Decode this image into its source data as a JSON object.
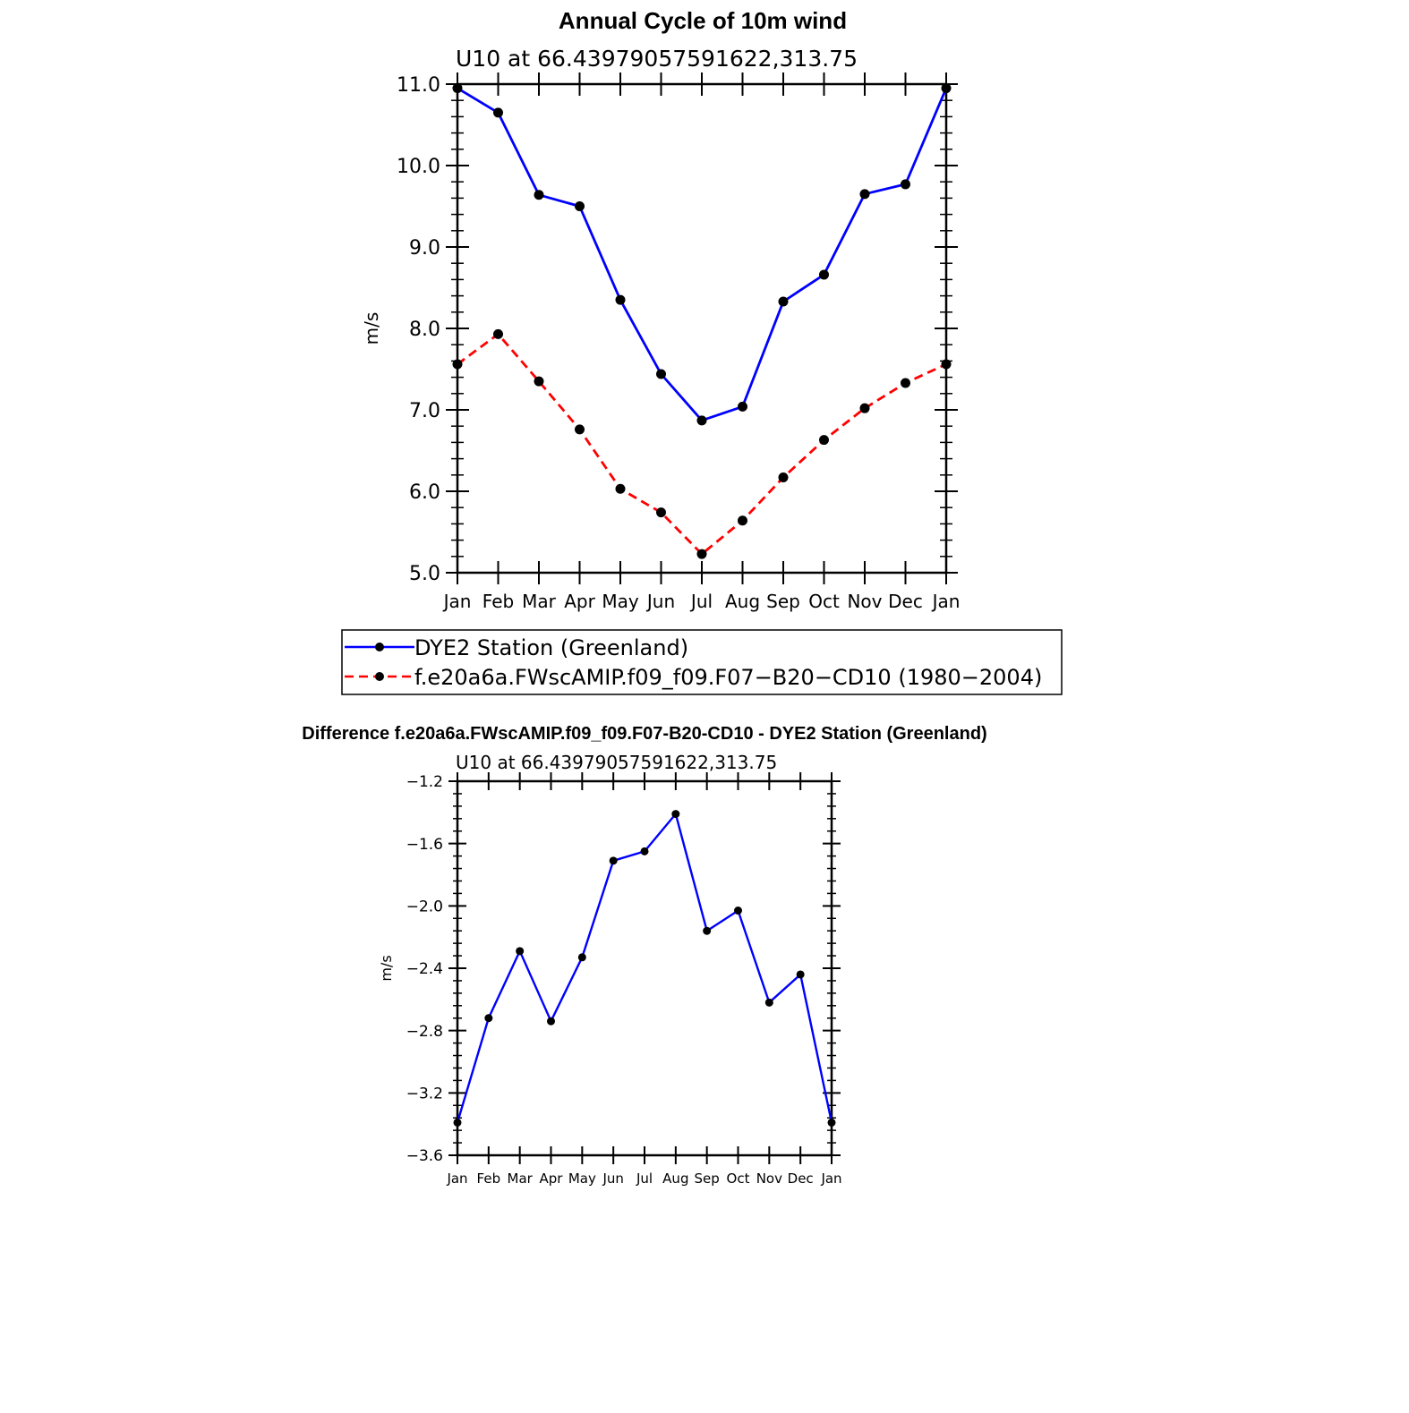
{
  "chart_data": [
    {
      "type": "line",
      "title": "Annual Cycle of 10m wind",
      "subtitle": "U10 at 66.43979057591622,313.75",
      "xlabel": "",
      "ylabel": "m/s",
      "ylim": [
        5.0,
        11.0
      ],
      "y_ticks": [
        "5.0",
        "6.0",
        "7.0",
        "8.0",
        "9.0",
        "10.0",
        "11.0"
      ],
      "categories": [
        "Jan",
        "Feb",
        "Mar",
        "Apr",
        "May",
        "Jun",
        "Jul",
        "Aug",
        "Sep",
        "Oct",
        "Nov",
        "Dec",
        "Jan"
      ],
      "grid": false,
      "legend_position": "bottom",
      "series": [
        {
          "name": "DYE2 Station (Greenland)",
          "color": "#0000ff",
          "dash": "solid",
          "values": [
            10.95,
            10.65,
            9.64,
            9.5,
            8.35,
            7.44,
            6.87,
            7.04,
            8.33,
            8.66,
            9.65,
            9.77,
            10.95
          ]
        },
        {
          "name": "f.e20a6a.FWscAMIP.f09_f09.F07−B20−CD10 (1980−2004)",
          "color": "#ff0000",
          "dash": "dashed",
          "values": [
            7.56,
            7.93,
            7.35,
            6.76,
            6.03,
            5.74,
            5.23,
            5.64,
            6.17,
            6.63,
            7.02,
            7.33,
            7.56
          ]
        }
      ]
    },
    {
      "type": "line",
      "title": "Difference f.e20a6a.FWscAMIP.f09_f09.F07-B20-CD10 - DYE2 Station (Greenland)",
      "subtitle": "U10 at 66.43979057591622,313.75",
      "xlabel": "",
      "ylabel": "m/s",
      "ylim": [
        -3.6,
        -1.2
      ],
      "y_ticks": [
        "−3.6",
        "−3.2",
        "−2.8",
        "−2.4",
        "−2.0",
        "−1.6",
        "−1.2"
      ],
      "categories": [
        "Jan",
        "Feb",
        "Mar",
        "Apr",
        "May",
        "Jun",
        "Jul",
        "Aug",
        "Sep",
        "Oct",
        "Nov",
        "Dec",
        "Jan"
      ],
      "grid": false,
      "series": [
        {
          "color": "#0000ff",
          "dash": "solid",
          "values": [
            -3.39,
            -2.72,
            -2.29,
            -2.74,
            -2.33,
            -1.71,
            -1.65,
            -1.41,
            -2.16,
            -2.03,
            -2.62,
            -2.44,
            -3.39
          ]
        }
      ]
    }
  ]
}
